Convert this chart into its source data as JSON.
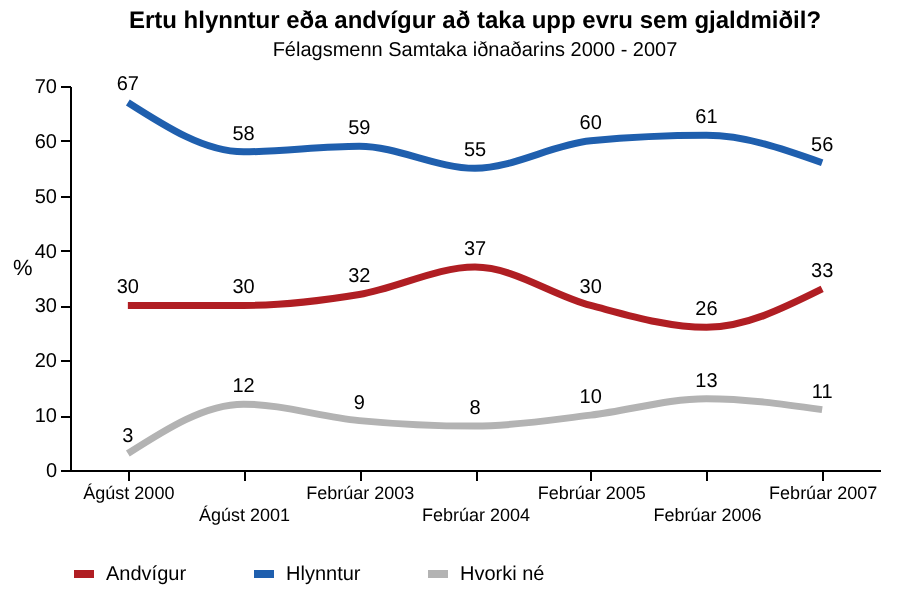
{
  "chart_data": {
    "type": "line",
    "title": "Ertu hlynntur eða andvígur að taka upp evru sem gjaldmiðil?",
    "subtitle": "Félagsmenn Samtaka iðnaðarins 2000 - 2007",
    "ylabel": "%",
    "categories": [
      "Ágúst 2000",
      "Ágúst 2001",
      "Febrúar 2003",
      "Febrúar 2004",
      "Febrúar 2005",
      "Febrúar 2006",
      "Febrúar 2007"
    ],
    "series": [
      {
        "name": "Andvígur",
        "color": "#b01e23",
        "values": [
          30,
          30,
          32,
          37,
          30,
          26,
          33
        ]
      },
      {
        "name": "Hlynntur",
        "color": "#1f5fae",
        "values": [
          67,
          58,
          59,
          55,
          60,
          61,
          56
        ]
      },
      {
        "name": "Hvorki né",
        "color": "#b3b3b3",
        "values": [
          3,
          12,
          9,
          8,
          10,
          13,
          11
        ]
      }
    ],
    "ylim": [
      0,
      70
    ],
    "yticks": [
      0,
      10,
      20,
      30,
      40,
      50,
      60,
      70
    ],
    "grid": false,
    "legend": "bottom",
    "data_labels": true,
    "marker": "none",
    "line_style": "solid"
  }
}
